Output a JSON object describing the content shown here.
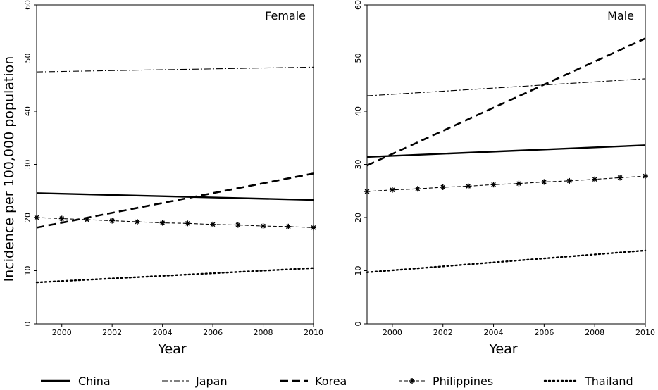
{
  "chart_data": [
    {
      "type": "line",
      "title": "Female",
      "xlabel": "Year",
      "ylabel": "Incidence per 100,000 population",
      "xlim": [
        1999,
        2010
      ],
      "ylim": [
        0,
        60
      ],
      "xticks": [
        "2000",
        "2002",
        "2004",
        "2006",
        "2008",
        "2010"
      ],
      "yticks": [
        "0",
        "10",
        "20",
        "30",
        "40",
        "50",
        "60"
      ],
      "series": [
        {
          "name": "China",
          "x": [
            1999,
            2010
          ],
          "y": [
            24.6,
            23.3
          ]
        },
        {
          "name": "Japan",
          "x": [
            1999,
            2010
          ],
          "y": [
            47.4,
            48.3
          ]
        },
        {
          "name": "Korea",
          "x": [
            1999,
            2010
          ],
          "y": [
            18.1,
            28.3
          ]
        },
        {
          "name": "Philippines",
          "x": [
            1999,
            2000,
            2001,
            2002,
            2003,
            2004,
            2005,
            2006,
            2007,
            2008,
            2009,
            2010
          ],
          "y": [
            20.0,
            19.8,
            19.6,
            19.4,
            19.2,
            19.0,
            18.9,
            18.7,
            18.6,
            18.4,
            18.3,
            18.1
          ]
        },
        {
          "name": "Thailand",
          "x": [
            1999,
            2010
          ],
          "y": [
            7.8,
            10.5
          ]
        }
      ]
    },
    {
      "type": "line",
      "title": "Male",
      "xlabel": "Year",
      "ylabel": "",
      "xlim": [
        1999,
        2010
      ],
      "ylim": [
        0,
        60
      ],
      "xticks": [
        "2000",
        "2002",
        "2004",
        "2006",
        "2008",
        "2010"
      ],
      "yticks": [
        "0",
        "10",
        "20",
        "30",
        "40",
        "50",
        "60"
      ],
      "series": [
        {
          "name": "China",
          "x": [
            1999,
            2010
          ],
          "y": [
            31.4,
            33.6
          ]
        },
        {
          "name": "Japan",
          "x": [
            1999,
            2010
          ],
          "y": [
            42.9,
            46.1
          ]
        },
        {
          "name": "Korea",
          "x": [
            1999,
            2010
          ],
          "y": [
            29.8,
            53.7
          ]
        },
        {
          "name": "Philippines",
          "x": [
            1999,
            2000,
            2001,
            2002,
            2003,
            2004,
            2005,
            2006,
            2007,
            2008,
            2009,
            2010
          ],
          "y": [
            24.9,
            25.2,
            25.4,
            25.7,
            25.9,
            26.2,
            26.4,
            26.7,
            26.9,
            27.2,
            27.5,
            27.8
          ]
        },
        {
          "name": "Thailand",
          "x": [
            1999,
            2010
          ],
          "y": [
            9.7,
            13.8
          ]
        }
      ]
    }
  ],
  "legend": {
    "placement": "bottom",
    "items": [
      "China",
      "Japan",
      "Korea",
      "Philippines",
      "Thailand"
    ]
  }
}
